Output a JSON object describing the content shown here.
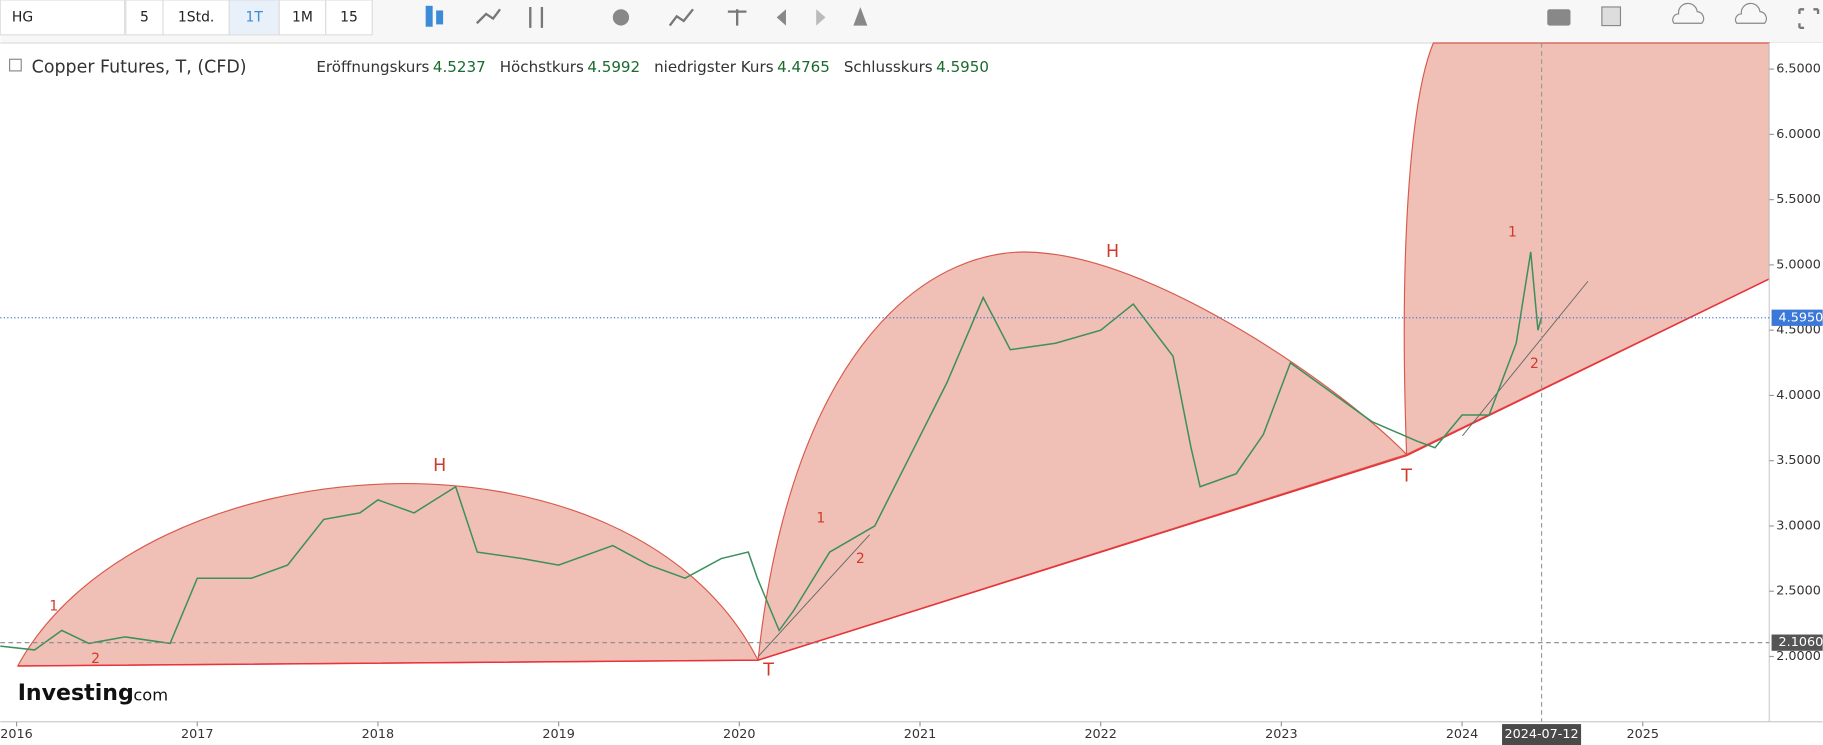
{
  "toolbar": {
    "symbol": "HG",
    "buttons": [
      "5",
      "1Std.",
      "1T",
      "1M",
      "15"
    ]
  },
  "legend": {
    "title": "Copper Futures, T, (CFD)",
    "fields": [
      {
        "label": "Eröffnungskurs",
        "value": "4.5237"
      },
      {
        "label": "Höchstkurs",
        "value": "4.5992"
      },
      {
        "label": "niedrigster Kurs",
        "value": "4.4765"
      },
      {
        "label": "Schlusskurs",
        "value": "4.5950"
      }
    ]
  },
  "logo": {
    "brand": "Investing",
    "suffix": ".com"
  },
  "chart_data": {
    "type": "line",
    "color": "#3d8f5c",
    "x": [
      2015.91,
      2016.1,
      2016.25,
      2016.4,
      2016.6,
      2016.85,
      2017.0,
      2017.3,
      2017.5,
      2017.7,
      2017.9,
      2018.0,
      2018.2,
      2018.43,
      2018.55,
      2018.8,
      2019.0,
      2019.3,
      2019.5,
      2019.7,
      2019.9,
      2020.05,
      2020.1,
      2020.22,
      2020.3,
      2020.5,
      2020.75,
      2020.95,
      2021.15,
      2021.35,
      2021.5,
      2021.75,
      2022.0,
      2022.18,
      2022.4,
      2022.5,
      2022.55,
      2022.75,
      2022.9,
      2023.05,
      2023.25,
      2023.5,
      2023.75,
      2023.85,
      2024.0,
      2024.15,
      2024.3,
      2024.38,
      2024.42,
      2024.44
    ],
    "values": [
      2.08,
      2.05,
      2.2,
      2.1,
      2.15,
      2.1,
      2.6,
      2.6,
      2.7,
      3.05,
      3.1,
      3.2,
      3.1,
      3.3,
      2.8,
      2.75,
      2.7,
      2.85,
      2.7,
      2.6,
      2.75,
      2.8,
      2.6,
      2.2,
      2.35,
      2.8,
      3.0,
      3.55,
      4.1,
      4.75,
      4.35,
      4.4,
      4.5,
      4.7,
      4.3,
      3.6,
      3.3,
      3.4,
      3.7,
      4.25,
      4.05,
      3.8,
      3.65,
      3.6,
      3.85,
      3.85,
      4.4,
      5.1,
      4.5,
      4.6
    ],
    "xlim": [
      2015.91,
      2025.7
    ],
    "ylim": [
      1.5,
      6.7
    ],
    "xticks": [
      2016,
      2017,
      2018,
      2019,
      2020,
      2021,
      2022,
      2023,
      2024,
      2025
    ],
    "yticks": [
      {
        "value": 2.0,
        "label": "2.0000"
      },
      {
        "value": 2.5,
        "label": "2.5000"
      },
      {
        "value": 3.0,
        "label": "3.0000"
      },
      {
        "value": 3.5,
        "label": "3.5000"
      },
      {
        "value": 4.0,
        "label": "4.0000"
      },
      {
        "value": 4.5,
        "label": "4.5000"
      },
      {
        "value": 5.0,
        "label": "5.0000"
      },
      {
        "value": 5.5,
        "label": "5.5000"
      },
      {
        "value": 6.0,
        "label": "6.0000"
      },
      {
        "value": 6.5,
        "label": "6.5000"
      }
    ],
    "price_lines": [
      {
        "value": 4.595,
        "label": "4.5950",
        "color": "#3c78d8"
      },
      {
        "value": 2.106,
        "label": "2.1060",
        "color": "#888888"
      }
    ],
    "crosshair": {
      "value": 2024.44,
      "label": "2024-07-12"
    },
    "annotations": [
      "1",
      "2",
      "H",
      "T",
      "1",
      "2",
      "H",
      "T",
      "1",
      "2"
    ]
  }
}
